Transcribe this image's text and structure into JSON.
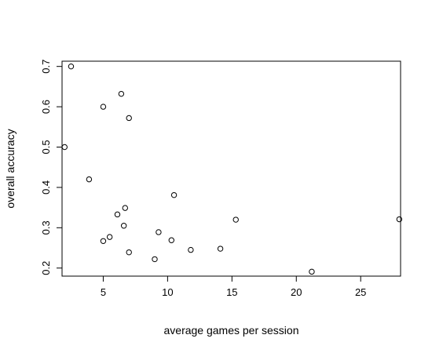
{
  "chart_data": {
    "type": "scatter",
    "title": "",
    "xlabel": "average games per session",
    "ylabel": "overall accuracy",
    "xlim": [
      1.8,
      28.1
    ],
    "ylim": [
      0.18,
      0.713
    ],
    "xticks": [
      5,
      10,
      15,
      20,
      25
    ],
    "xtick_labels": [
      "5",
      "10",
      "15",
      "20",
      "25"
    ],
    "yticks": [
      0.2,
      0.3,
      0.4,
      0.5,
      0.6,
      0.7
    ],
    "ytick_labels": [
      "0.2",
      "0.3",
      "0.4",
      "0.5",
      "0.6",
      "0.7"
    ],
    "grid": false,
    "legend": "none",
    "point_style": "open-circle",
    "point_color": "#000000",
    "points": [
      {
        "x": 2.5,
        "y": 0.7
      },
      {
        "x": 6.4,
        "y": 0.632
      },
      {
        "x": 5.0,
        "y": 0.6
      },
      {
        "x": 7.0,
        "y": 0.572
      },
      {
        "x": 2.0,
        "y": 0.5
      },
      {
        "x": 3.9,
        "y": 0.42
      },
      {
        "x": 10.5,
        "y": 0.381
      },
      {
        "x": 6.7,
        "y": 0.349
      },
      {
        "x": 6.1,
        "y": 0.333
      },
      {
        "x": 15.3,
        "y": 0.32
      },
      {
        "x": 28.0,
        "y": 0.321
      },
      {
        "x": 6.6,
        "y": 0.305
      },
      {
        "x": 9.3,
        "y": 0.289
      },
      {
        "x": 5.5,
        "y": 0.277
      },
      {
        "x": 5.0,
        "y": 0.267
      },
      {
        "x": 10.3,
        "y": 0.269
      },
      {
        "x": 14.1,
        "y": 0.248
      },
      {
        "x": 11.8,
        "y": 0.245
      },
      {
        "x": 7.0,
        "y": 0.239
      },
      {
        "x": 9.0,
        "y": 0.222
      },
      {
        "x": 21.2,
        "y": 0.191
      }
    ]
  }
}
